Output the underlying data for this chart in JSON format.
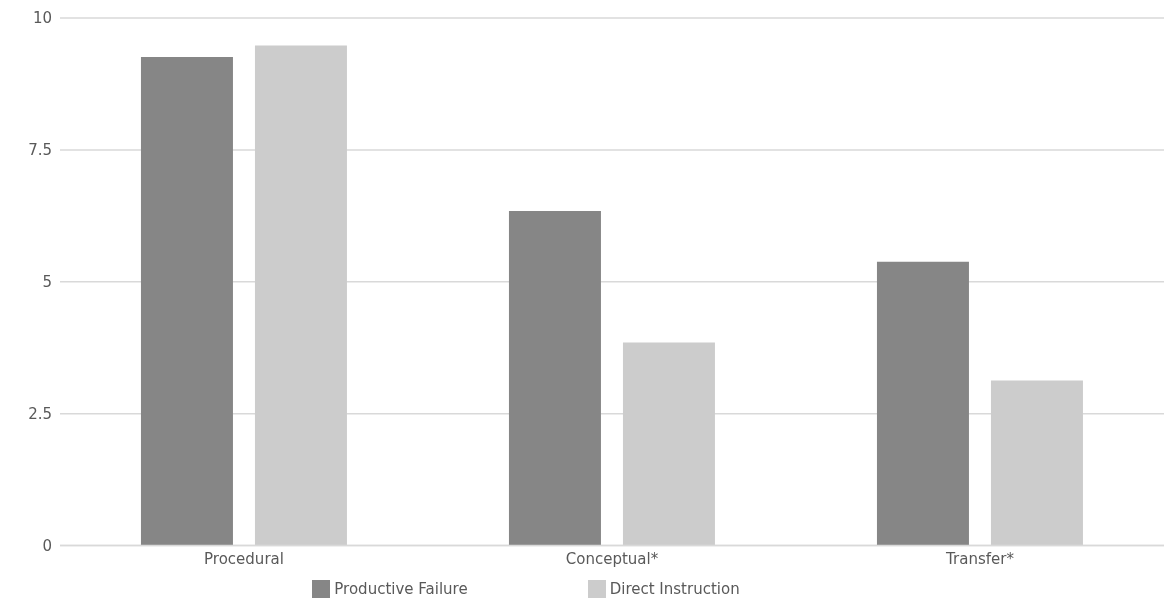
{
  "chart_data": {
    "type": "bar",
    "categories": [
      "Procedural",
      "Conceptual*",
      "Transfer*"
    ],
    "series": [
      {
        "name": "Productive Failure",
        "color": "#868686",
        "values": [
          9.26,
          6.34,
          5.38
        ]
      },
      {
        "name": "Direct Instruction",
        "color": "#cccccc",
        "values": [
          9.48,
          3.85,
          3.13
        ]
      }
    ],
    "ylim": [
      0,
      10
    ],
    "yticks": [
      0,
      {
        "value": 2.5,
        "label": "2.5"
      },
      5,
      {
        "value": 7.5,
        "label": "7.5"
      },
      10
    ],
    "grid": "y",
    "legend": "bottom"
  }
}
